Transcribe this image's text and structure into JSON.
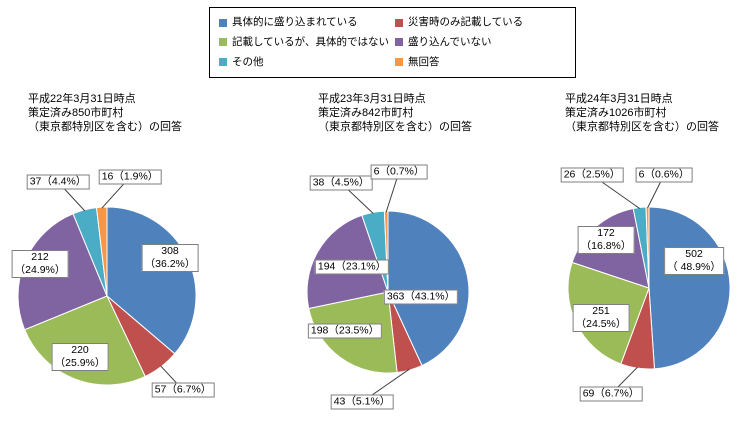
{
  "figure": {
    "background": "#ffffff"
  },
  "legend": {
    "items": [
      {
        "label": "具体的に盛り込まれている",
        "color": "#4F81BD"
      },
      {
        "label": "災害時のみ記載している",
        "color": "#C0504D"
      },
      {
        "label": "記載しているが、具体的ではない",
        "color": "#9BBB59"
      },
      {
        "label": "盛り込んでいない",
        "color": "#8064A2"
      },
      {
        "label": "その他",
        "color": "#4BACC6"
      },
      {
        "label": "無回答",
        "color": "#F79646"
      }
    ]
  },
  "chart_data": [
    {
      "type": "pie",
      "title": "平成22年3月31日時点 策定済み850市町村（東京都特別区を含む）の回答",
      "title_lines": [
        "平成22年3月31日時点",
        "策定済み850市町村",
        "（東京都特別区を含む）の回答"
      ],
      "total": 850,
      "legend_position": "top",
      "categories": [
        "具体的に盛り込まれている",
        "災害時のみ記載している",
        "記載しているが、具体的ではない",
        "盛り込んでいない",
        "その他",
        "無回答"
      ],
      "values": [
        308,
        57,
        220,
        212,
        37,
        16
      ],
      "pct_labels": [
        "36.2%",
        "6.7%",
        "25.9%",
        "24.9%",
        "4.4%",
        "1.9%"
      ]
    },
    {
      "type": "pie",
      "title": "平成23年3月31日時点 策定済み842市町村（東京都特別区を含む）の回答",
      "title_lines": [
        "平成23年3月31日時点",
        "策定済み842市町村",
        "（東京都特別区を含む）の回答"
      ],
      "total": 842,
      "legend_position": "top",
      "categories": [
        "具体的に盛り込まれている",
        "災害時のみ記載している",
        "記載しているが、具体的ではない",
        "盛り込んでいない",
        "その他",
        "無回答"
      ],
      "values": [
        363,
        43,
        198,
        194,
        38,
        6
      ],
      "pct_labels": [
        "43.1%",
        "5.1%",
        "23.5%",
        "23.1%",
        "4.5%",
        "0.7%"
      ]
    },
    {
      "type": "pie",
      "title": "平成24年3月31日時点 策定済み1026市町村（東京都特別区を含む）の回答",
      "title_lines": [
        "平成24年3月31日時点",
        "策定済み1026市町村",
        "（東京都特別区を含む）の回答"
      ],
      "total": 1026,
      "legend_position": "top",
      "categories": [
        "具体的に盛り込まれている",
        "災害時のみ記載している",
        "記載しているが、具体的ではない",
        "盛り込んでいない",
        "その他",
        "無回答"
      ],
      "values": [
        502,
        69,
        251,
        172,
        26,
        6
      ],
      "pct_labels": [
        " 48.9%",
        "6.7%",
        "24.5%",
        "16.8%",
        "2.5%",
        "0.6%"
      ]
    }
  ]
}
